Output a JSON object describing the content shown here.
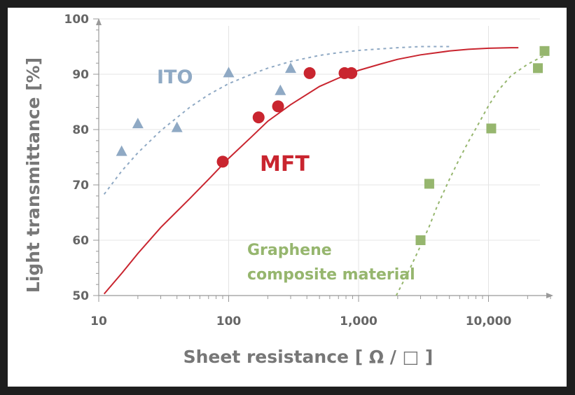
{
  "chart_data": {
    "type": "scatter",
    "x_scale": "log",
    "xlim": [
      10,
      30000
    ],
    "ylim": [
      50,
      100
    ],
    "grid": true,
    "xlabel": "Sheet resistance [ Ω / □ ]",
    "ylabel": "Light transmittance  [%]",
    "x_ticks": [
      10,
      100,
      1000,
      10000
    ],
    "x_tick_labels": [
      "10",
      "100",
      "1,000",
      "10,000"
    ],
    "y_ticks": [
      50,
      60,
      70,
      80,
      90,
      100
    ],
    "y_tick_labels": [
      "50",
      "60",
      "70",
      "80",
      "90",
      "100"
    ],
    "series": [
      {
        "name": "ITO",
        "color": "#8fa9c4",
        "marker": "triangle",
        "points": [
          [
            15,
            76
          ],
          [
            20,
            81
          ],
          [
            40,
            80.3
          ],
          [
            100,
            90.2
          ],
          [
            250,
            87
          ],
          [
            300,
            91
          ]
        ],
        "trend": [
          [
            11,
            68.3
          ],
          [
            15,
            72.5
          ],
          [
            20,
            75.8
          ],
          [
            30,
            79.8
          ],
          [
            50,
            84
          ],
          [
            70,
            86.3
          ],
          [
            100,
            88.3
          ],
          [
            150,
            90
          ],
          [
            200,
            91.1
          ],
          [
            300,
            92.3
          ],
          [
            500,
            93.4
          ],
          [
            700,
            93.9
          ],
          [
            1000,
            94.3
          ],
          [
            1500,
            94.6
          ],
          [
            2000,
            94.8
          ],
          [
            3000,
            95
          ],
          [
            5000,
            95
          ]
        ]
      },
      {
        "name": "MFT",
        "color": "#c9252f",
        "marker": "circle",
        "points": [
          [
            90,
            74.2
          ],
          [
            170,
            82.2
          ],
          [
            240,
            84.2
          ],
          [
            420,
            90.2
          ],
          [
            780,
            90.2
          ],
          [
            880,
            90.2
          ]
        ],
        "trend": [
          [
            11,
            50.3
          ],
          [
            15,
            54
          ],
          [
            20,
            57.6
          ],
          [
            30,
            62.3
          ],
          [
            50,
            67.5
          ],
          [
            70,
            71
          ],
          [
            100,
            74.8
          ],
          [
            150,
            78.7
          ],
          [
            200,
            81.5
          ],
          [
            300,
            84.5
          ],
          [
            500,
            87.8
          ],
          [
            700,
            89.3
          ],
          [
            1000,
            90.7
          ],
          [
            1500,
            91.9
          ],
          [
            2000,
            92.7
          ],
          [
            3000,
            93.5
          ],
          [
            5000,
            94.2
          ],
          [
            7000,
            94.5
          ],
          [
            10000,
            94.7
          ],
          [
            15000,
            94.8
          ],
          [
            17000,
            94.8
          ]
        ]
      },
      {
        "name": "Graphene composite material",
        "color": "#96b66e",
        "marker": "square",
        "points": [
          [
            3000,
            60
          ],
          [
            3500,
            70.2
          ],
          [
            10500,
            80.2
          ],
          [
            24000,
            91.1
          ],
          [
            27000,
            94.2
          ]
        ],
        "trend": [
          [
            1950,
            50
          ],
          [
            2500,
            55
          ],
          [
            3000,
            59
          ],
          [
            3500,
            62.5
          ],
          [
            4000,
            66
          ],
          [
            5000,
            71
          ],
          [
            6000,
            74.8
          ],
          [
            7000,
            77.8
          ],
          [
            8000,
            80.2
          ],
          [
            10000,
            84.3
          ],
          [
            12000,
            87.2
          ],
          [
            15000,
            89.8
          ],
          [
            20000,
            91.8
          ],
          [
            25000,
            93
          ],
          [
            30000,
            93.7
          ]
        ]
      }
    ]
  }
}
